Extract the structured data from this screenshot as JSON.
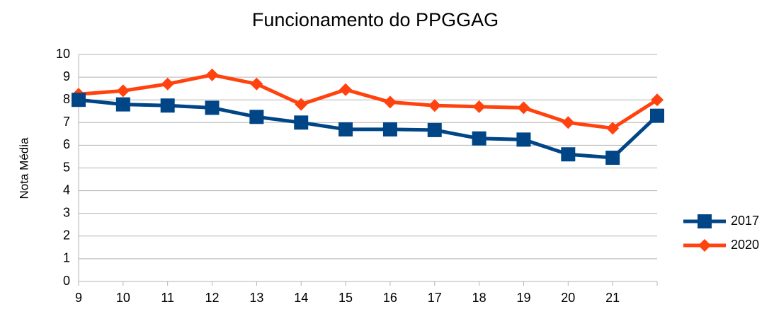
{
  "chart_data": {
    "type": "line",
    "title": "Funcionamento do PPGGAG",
    "y_label": "Nota Média",
    "categories": [
      "9",
      "10",
      "11",
      "12",
      "13",
      "14",
      "15",
      "16",
      "17",
      "18",
      "19",
      "20",
      "21",
      null
    ],
    "series": [
      {
        "name": "2017",
        "color": "#004586",
        "marker": "square",
        "values": [
          8.0,
          7.8,
          7.75,
          7.65,
          7.25,
          7.0,
          6.7,
          6.7,
          6.67,
          6.3,
          6.25,
          5.6,
          5.45,
          7.3
        ]
      },
      {
        "name": "2020",
        "color": "#ff420e",
        "marker": "diamond",
        "values": [
          8.25,
          8.4,
          8.7,
          9.1,
          8.7,
          7.8,
          8.45,
          7.9,
          7.75,
          7.7,
          7.65,
          7.0,
          6.75,
          8.0
        ]
      }
    ],
    "ylim": [
      0,
      10
    ],
    "yticks": [
      0,
      1,
      2,
      3,
      4,
      5,
      6,
      7,
      8,
      9,
      10
    ],
    "grid": true,
    "legend": "right"
  }
}
